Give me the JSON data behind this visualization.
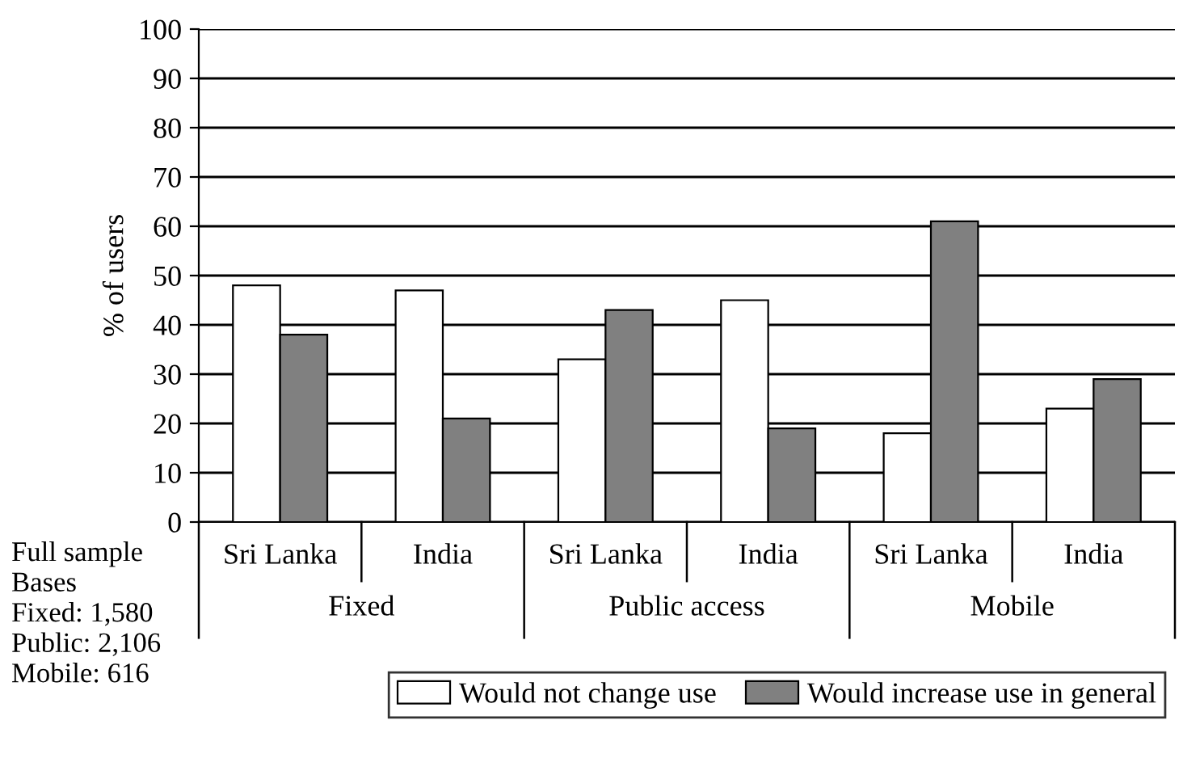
{
  "chart_data": {
    "type": "bar",
    "ylabel": "% of users",
    "categories": [
      "Sri Lanka",
      "India",
      "Sri Lanka",
      "India",
      "Sri Lanka",
      "India"
    ],
    "series": [
      {
        "name": "Would not change use",
        "color": "#ffffff",
        "values": [
          48,
          47,
          33,
          45,
          18,
          23
        ]
      },
      {
        "name": "Would increase use in general",
        "color": "#808080",
        "values": [
          38,
          21,
          43,
          19,
          61,
          29
        ]
      }
    ],
    "ylim": [
      0,
      100
    ],
    "yticks": [
      0,
      10,
      20,
      30,
      40,
      50,
      60,
      70,
      80,
      90,
      100
    ],
    "grid": "y",
    "legend": "bottom",
    "annotations": [
      "Fixed",
      "Public access",
      "Mobile",
      "Full sample\nBases\nFixed: 1,580\nPublic: 2,106\nMobile: 616"
    ]
  }
}
